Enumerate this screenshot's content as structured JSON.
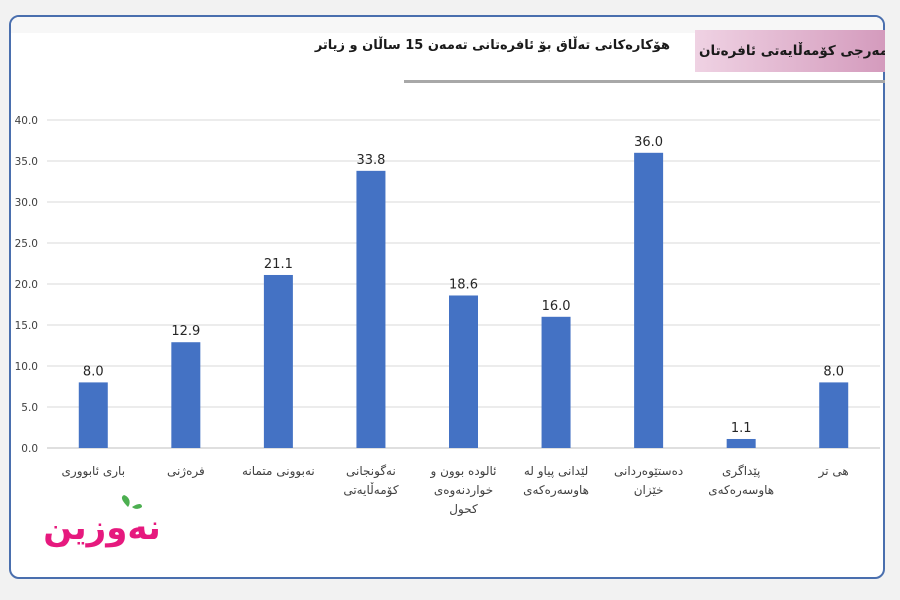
{
  "header": {
    "banner_text": "هەنومەرجی کۆمەڵایەتی ئافرەتان",
    "title": "هۆکارەکانی تەڵاق بۆ ئافرەتانی تەمەن 15 ساڵان و زیاتر"
  },
  "logo": {
    "text": "نەوزین",
    "colors": {
      "text": "#e6197e",
      "leaf": "#4caf50"
    }
  },
  "chart_data": {
    "type": "bar",
    "title": "هۆکارەکانی تەڵاق بۆ ئافرەتانی تەمەن 15 ساڵان و زیاتر",
    "xlabel": "",
    "ylabel": "",
    "ylim": [
      0,
      40
    ],
    "yticks": [
      0,
      5,
      10,
      15,
      20,
      25,
      30,
      35,
      40
    ],
    "ytick_labels": [
      "0.0",
      "5.0",
      "10.0",
      "15.0",
      "20.0",
      "25.0",
      "30.0",
      "35.0",
      "40.0"
    ],
    "grid": true,
    "legend": "none",
    "bar_color": "#4472c4",
    "categories": [
      [
        "باری ئابووری"
      ],
      [
        "فرەژنی"
      ],
      [
        "نەبوونی متمانە"
      ],
      [
        "نەگونجانی",
        "کۆمەڵایەتی"
      ],
      [
        "ئالودە بوون و",
        "خواردنەوەی",
        "کحول"
      ],
      [
        "لێدانی پیاو لە",
        "هاوسەرەکەی"
      ],
      [
        "دەستێوەردانی",
        "خێزان"
      ],
      [
        "پێداگری",
        "هاوسەرەکەی"
      ],
      [
        "هی تر"
      ]
    ],
    "values": [
      8.0,
      12.9,
      21.1,
      33.8,
      18.6,
      16.0,
      36.0,
      1.1,
      8.0
    ],
    "value_labels": [
      "8.0",
      "12.9",
      "21.1",
      "33.8",
      "18.6",
      "16.0",
      "36.0",
      "1.1",
      "8.0"
    ]
  }
}
